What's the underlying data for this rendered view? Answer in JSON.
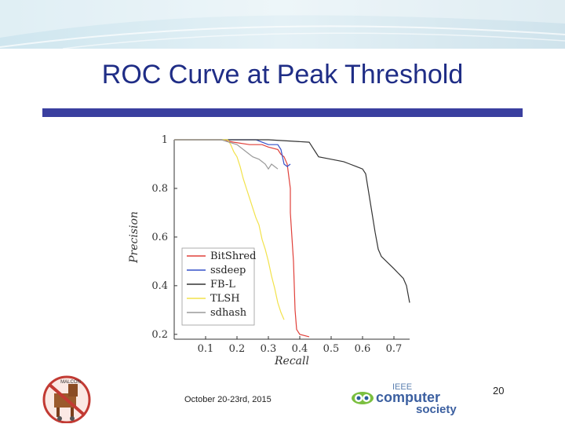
{
  "slide": {
    "title": "ROC Curve at Peak Threshold",
    "date": "October 20-23rd, 2015",
    "page_number": "20"
  },
  "logos": {
    "left_logo_text": "MALCON",
    "right_logo_lines": [
      "IEEE",
      "computer",
      "society"
    ]
  },
  "colors": {
    "title": "#1f2d86",
    "rule": "#3a3f9f",
    "BitShred": "#e0403a",
    "ssdeep": "#3550c8",
    "FB-L": "#333333",
    "TLSH": "#f2e24a",
    "sdhash": "#9a9a9a"
  },
  "chart_data": {
    "type": "line",
    "title": "",
    "xlabel": "Recall",
    "ylabel": "Precision",
    "xlim": [
      0.0,
      0.75
    ],
    "ylim": [
      0.18,
      1.0
    ],
    "xticks": [
      "0.1",
      "0.2",
      "0.3",
      "0.4",
      "0.5",
      "0.6",
      "0.7"
    ],
    "yticks": [
      "0.2",
      "0.4",
      "0.6",
      "0.8",
      "1"
    ],
    "legend_position": "lower-left",
    "series": [
      {
        "name": "BitShred",
        "color": "#e0403a",
        "points": [
          [
            0,
            1
          ],
          [
            0.15,
            1
          ],
          [
            0.19,
            0.99
          ],
          [
            0.24,
            0.98
          ],
          [
            0.28,
            0.98
          ],
          [
            0.3,
            0.97
          ],
          [
            0.33,
            0.96
          ],
          [
            0.34,
            0.94
          ],
          [
            0.35,
            0.93
          ],
          [
            0.36,
            0.9
          ],
          [
            0.37,
            0.8
          ],
          [
            0.37,
            0.7
          ],
          [
            0.375,
            0.6
          ],
          [
            0.38,
            0.5
          ],
          [
            0.385,
            0.3
          ],
          [
            0.39,
            0.22
          ],
          [
            0.4,
            0.2
          ],
          [
            0.43,
            0.19
          ]
        ]
      },
      {
        "name": "ssdeep",
        "color": "#3550c8",
        "points": [
          [
            0,
            1
          ],
          [
            0.26,
            1
          ],
          [
            0.28,
            0.99
          ],
          [
            0.3,
            0.98
          ],
          [
            0.33,
            0.98
          ],
          [
            0.34,
            0.96
          ],
          [
            0.345,
            0.93
          ],
          [
            0.35,
            0.9
          ],
          [
            0.36,
            0.89
          ],
          [
            0.37,
            0.9
          ]
        ]
      },
      {
        "name": "FB-L",
        "color": "#333333",
        "points": [
          [
            0,
            1
          ],
          [
            0.3,
            1
          ],
          [
            0.43,
            0.99
          ],
          [
            0.44,
            0.97
          ],
          [
            0.45,
            0.95
          ],
          [
            0.46,
            0.93
          ],
          [
            0.5,
            0.92
          ],
          [
            0.54,
            0.91
          ],
          [
            0.56,
            0.9
          ],
          [
            0.58,
            0.89
          ],
          [
            0.6,
            0.88
          ],
          [
            0.61,
            0.86
          ],
          [
            0.62,
            0.78
          ],
          [
            0.63,
            0.7
          ],
          [
            0.64,
            0.62
          ],
          [
            0.65,
            0.55
          ],
          [
            0.66,
            0.52
          ],
          [
            0.7,
            0.47
          ],
          [
            0.73,
            0.43
          ],
          [
            0.74,
            0.4
          ],
          [
            0.75,
            0.33
          ]
        ]
      },
      {
        "name": "TLSH",
        "color": "#f2e24a",
        "points": [
          [
            0,
            1
          ],
          [
            0.17,
            1
          ],
          [
            0.18,
            0.98
          ],
          [
            0.19,
            0.95
          ],
          [
            0.2,
            0.93
          ],
          [
            0.21,
            0.89
          ],
          [
            0.22,
            0.84
          ],
          [
            0.23,
            0.8
          ],
          [
            0.24,
            0.76
          ],
          [
            0.25,
            0.72
          ],
          [
            0.26,
            0.68
          ],
          [
            0.27,
            0.65
          ],
          [
            0.28,
            0.59
          ],
          [
            0.29,
            0.55
          ],
          [
            0.3,
            0.5
          ],
          [
            0.31,
            0.44
          ],
          [
            0.32,
            0.39
          ],
          [
            0.33,
            0.33
          ],
          [
            0.34,
            0.29
          ],
          [
            0.35,
            0.26
          ]
        ]
      },
      {
        "name": "sdhash",
        "color": "#9a9a9a",
        "points": [
          [
            0,
            1
          ],
          [
            0.15,
            1
          ],
          [
            0.2,
            0.98
          ],
          [
            0.23,
            0.95
          ],
          [
            0.25,
            0.93
          ],
          [
            0.27,
            0.92
          ],
          [
            0.28,
            0.91
          ],
          [
            0.29,
            0.9
          ],
          [
            0.3,
            0.88
          ],
          [
            0.31,
            0.9
          ],
          [
            0.32,
            0.89
          ],
          [
            0.33,
            0.88
          ]
        ]
      }
    ]
  }
}
